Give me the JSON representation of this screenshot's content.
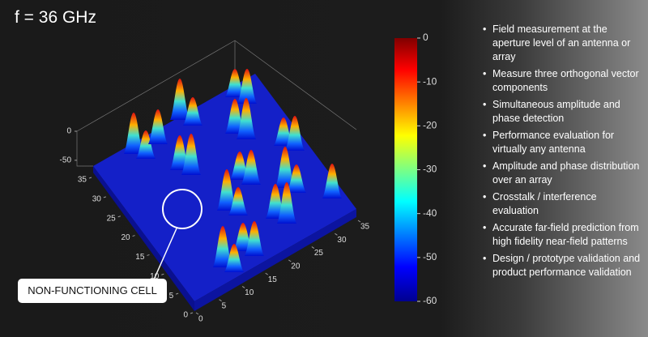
{
  "title": "f = 36 GHz",
  "colorbar": {
    "range": [
      -60,
      0
    ],
    "ticks": [
      0,
      -10,
      -20,
      -30,
      -40,
      -50,
      -60
    ]
  },
  "plot": {
    "x_ticks": [
      0,
      5,
      10,
      15,
      20,
      25,
      30,
      35
    ],
    "y_ticks": [
      0,
      5,
      10,
      15,
      20,
      25,
      30,
      35
    ],
    "z_ticks": [
      0,
      -50
    ],
    "xlim": [
      0,
      35
    ],
    "ylim": [
      0,
      35
    ],
    "zlim": [
      -60,
      0
    ]
  },
  "annotation": "NON-FUNCTIONING CELL",
  "bullets": [
    "Field measurement at the aperture level of an antenna or array",
    "Measure three orthogonal vector components",
    "Simultaneous amplitude and phase detection",
    "Performance evaluation for virtually any antenna",
    "Amplitude and phase distribution over an array",
    "Crosstalk / interference evaluation",
    "Accurate far-field prediction from high fidelity near-field patterns",
    "Design / prototype validation and product performance validation"
  ]
}
